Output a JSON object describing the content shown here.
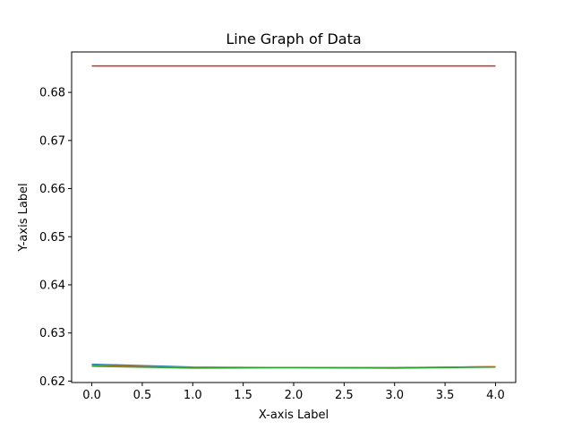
{
  "chart_data": {
    "type": "line",
    "title": "Line Graph of Data",
    "xlabel": "X-axis Label",
    "ylabel": "Y-axis Label",
    "x": [
      0,
      1,
      2,
      3,
      4
    ],
    "xlim": [
      -0.2,
      4.2
    ],
    "ylim": [
      0.6197,
      0.6884
    ],
    "x_ticks": [
      0.0,
      0.5,
      1.0,
      1.5,
      2.0,
      2.5,
      3.0,
      3.5,
      4.0
    ],
    "x_tick_labels": [
      "0.0",
      "0.5",
      "1.0",
      "1.5",
      "2.0",
      "2.5",
      "3.0",
      "3.5",
      "4.0"
    ],
    "y_ticks": [
      0.62,
      0.63,
      0.64,
      0.65,
      0.66,
      0.67,
      0.68
    ],
    "y_tick_labels": [
      "0.62",
      "0.63",
      "0.64",
      "0.65",
      "0.66",
      "0.67",
      "0.68"
    ],
    "grid": false,
    "legend": "none",
    "series": [
      {
        "color": "#d62728",
        "values": [
          0.6855,
          0.6855,
          0.6855,
          0.6855,
          0.6855
        ]
      },
      {
        "color": "#1f77b4",
        "values": [
          0.6235,
          0.6229,
          0.6228,
          0.6228,
          0.623
        ]
      },
      {
        "color": "#ff7f0e",
        "values": [
          0.6232,
          0.6228,
          0.6228,
          0.6227,
          0.623
        ]
      },
      {
        "color": "#2ca02c",
        "values": [
          0.6231,
          0.6227,
          0.6228,
          0.6227,
          0.6229
        ]
      }
    ]
  }
}
